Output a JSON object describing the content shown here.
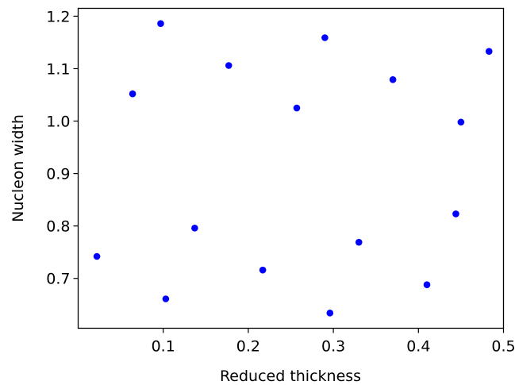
{
  "chart_data": {
    "type": "scatter",
    "title": "",
    "xlabel": "Reduced thickness",
    "ylabel": "Nucleon width",
    "xlim": [
      0.0,
      0.5
    ],
    "ylim": [
      0.605,
      1.215
    ],
    "xticks": [
      "0.1",
      "0.2",
      "0.3",
      "0.4",
      "0.5"
    ],
    "yticks": [
      "0.7",
      "0.8",
      "0.9",
      "1.0",
      "1.1",
      "1.2"
    ],
    "grid": false,
    "legend": "none",
    "series": [
      {
        "color": "#0000ff",
        "points": [
          {
            "x": 0.022,
            "y": 0.742
          },
          {
            "x": 0.064,
            "y": 1.052
          },
          {
            "x": 0.097,
            "y": 1.186
          },
          {
            "x": 0.103,
            "y": 0.661
          },
          {
            "x": 0.137,
            "y": 0.796
          },
          {
            "x": 0.177,
            "y": 1.106
          },
          {
            "x": 0.217,
            "y": 0.716
          },
          {
            "x": 0.257,
            "y": 1.025
          },
          {
            "x": 0.29,
            "y": 1.159
          },
          {
            "x": 0.296,
            "y": 0.634
          },
          {
            "x": 0.33,
            "y": 0.769
          },
          {
            "x": 0.37,
            "y": 1.079
          },
          {
            "x": 0.41,
            "y": 0.688
          },
          {
            "x": 0.444,
            "y": 0.823
          },
          {
            "x": 0.45,
            "y": 0.998
          },
          {
            "x": 0.483,
            "y": 1.133
          }
        ]
      }
    ]
  }
}
